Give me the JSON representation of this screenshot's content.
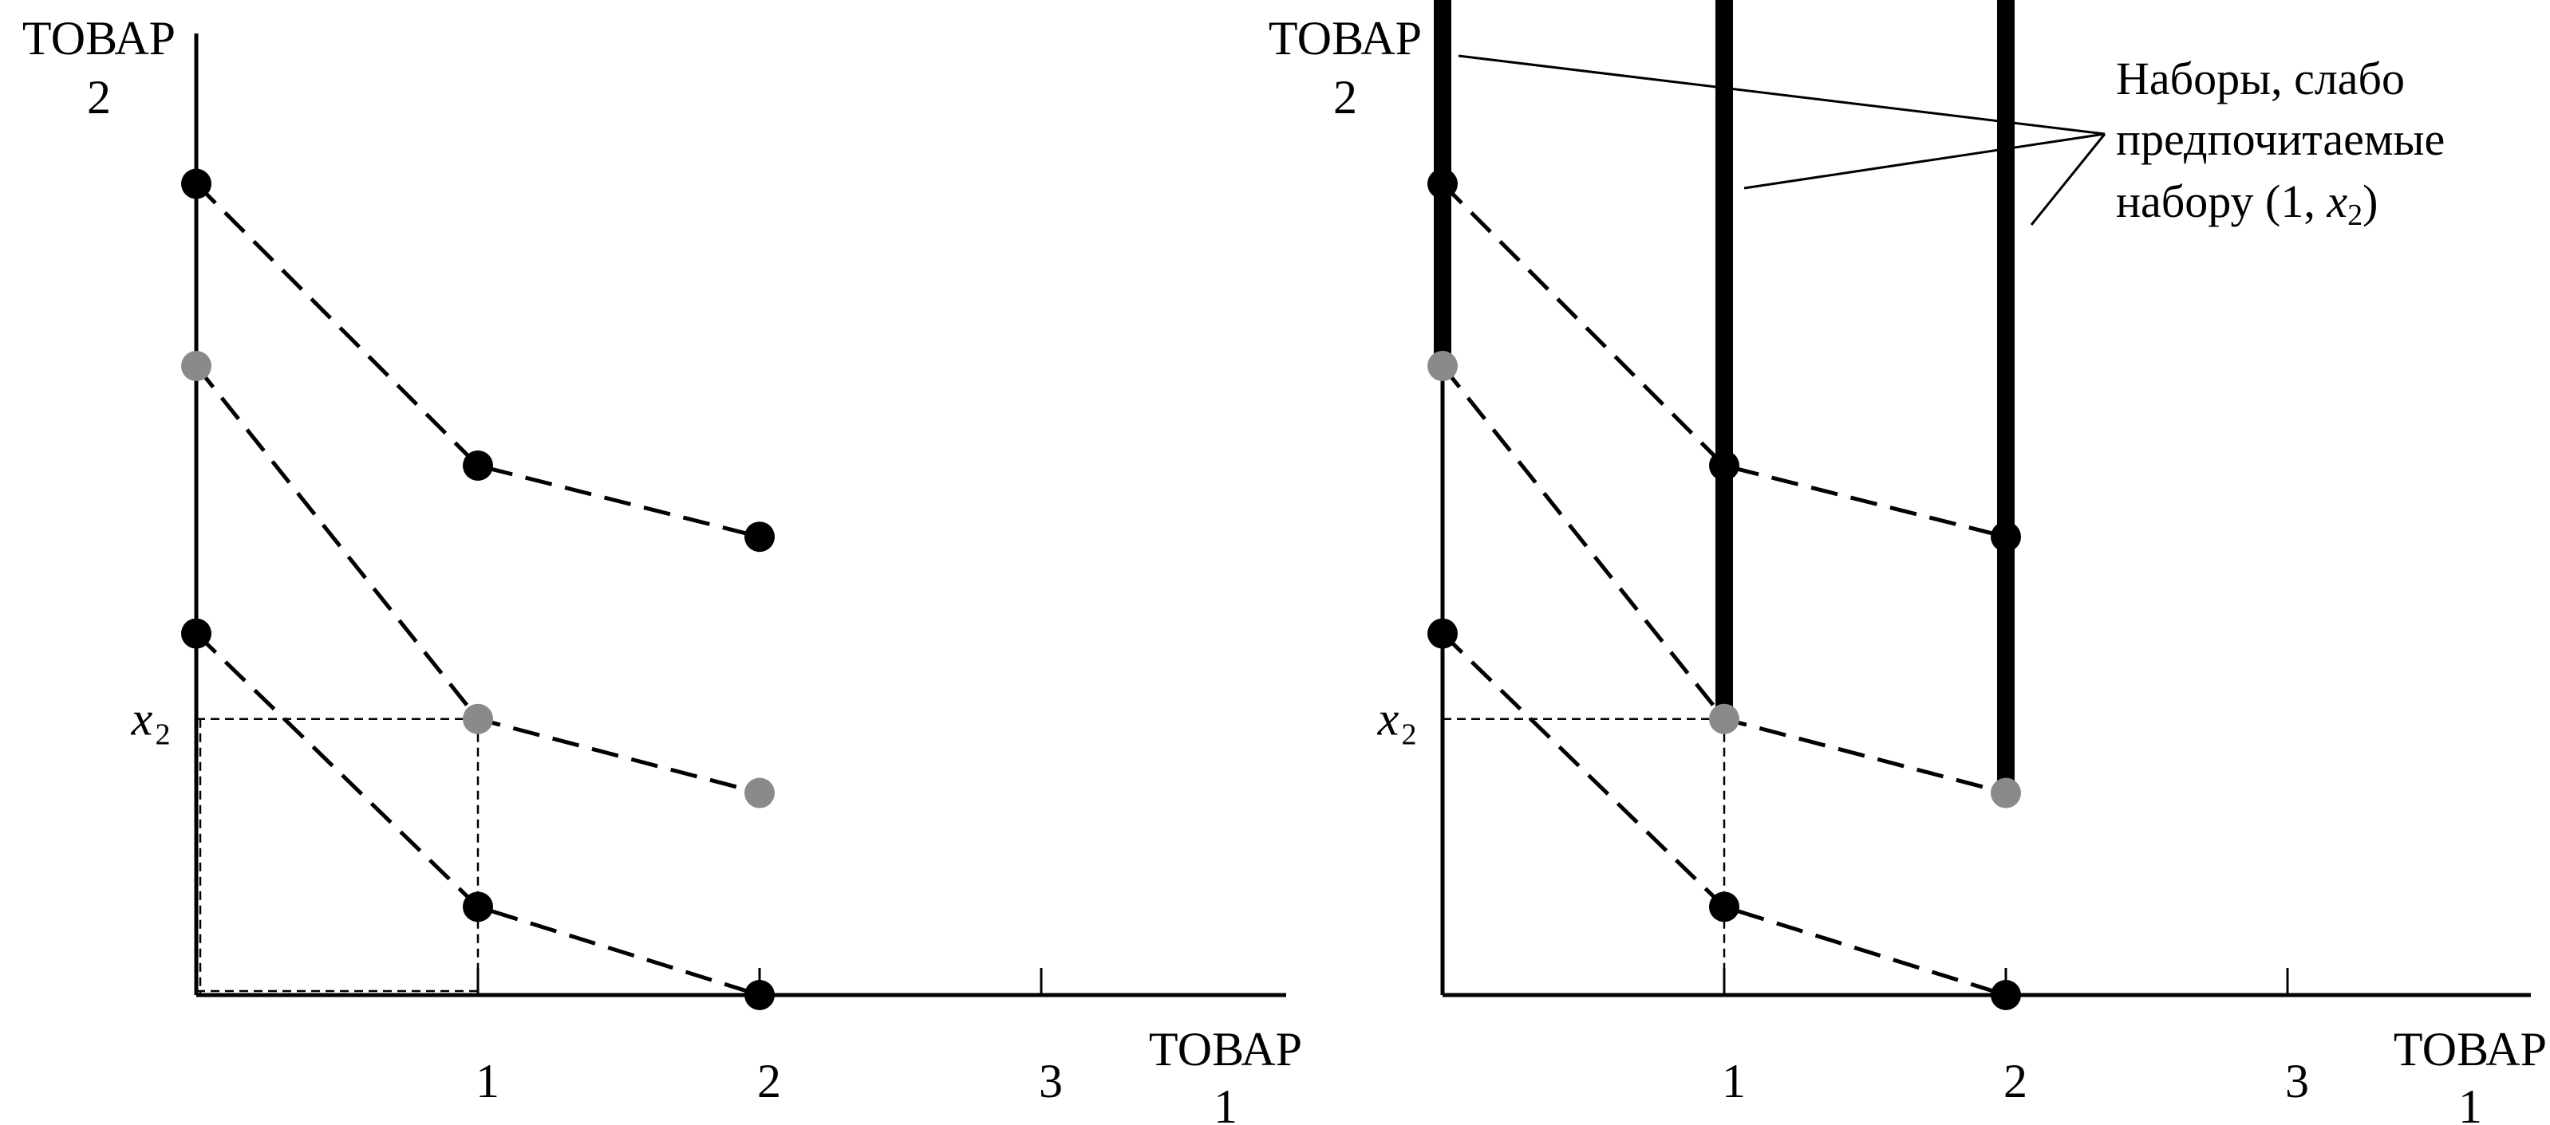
{
  "chart_data": [
    {
      "type": "diagram",
      "y_axis_label": [
        "ТОВАР",
        "2"
      ],
      "x_axis_label": [
        "ТОВАР",
        "1"
      ],
      "x_ticks": [
        "1",
        "2",
        "3"
      ],
      "x2_label": "x",
      "x2_subscript": "2",
      "colors": {
        "axis": "#000000",
        "black_point": "#000000",
        "gray_point": "#8a8a8a"
      },
      "curves": [
        {
          "color": "black",
          "points": [
            [
              0,
              2.85
            ],
            [
              1,
              1.86
            ],
            [
              2,
              1.61
            ]
          ]
        },
        {
          "color": "gray",
          "points": [
            [
              0,
              2.21
            ],
            [
              1,
              0.97
            ],
            [
              2,
              0.71
            ]
          ]
        },
        {
          "color": "black",
          "points": [
            [
              0,
              1.27
            ],
            [
              1,
              0.31
            ],
            [
              2,
              0.0
            ]
          ]
        }
      ],
      "reference_point": {
        "x": 1,
        "y": 0.97
      }
    },
    {
      "type": "diagram",
      "y_axis_label": [
        "ТОВАР",
        "2"
      ],
      "x_axis_label": [
        "ТОВАР",
        "1"
      ],
      "x_ticks": [
        "1",
        "2",
        "3"
      ],
      "x2_label": "x",
      "x2_subscript": "2",
      "colors": {
        "axis": "#000000",
        "black_point": "#000000",
        "gray_point": "#8a8a8a"
      },
      "curves": [
        {
          "color": "black",
          "points": [
            [
              0,
              2.85
            ],
            [
              1,
              1.86
            ],
            [
              2,
              1.61
            ]
          ]
        },
        {
          "color": "gray",
          "points": [
            [
              0,
              2.21
            ],
            [
              1,
              0.97
            ],
            [
              2,
              0.71
            ]
          ]
        },
        {
          "color": "black",
          "points": [
            [
              0,
              1.27
            ],
            [
              1,
              0.31
            ],
            [
              2,
              0.0
            ]
          ]
        }
      ],
      "reference_point": {
        "x": 1,
        "y": 0.97
      },
      "weakly_preferred_rays": [
        {
          "x": 0,
          "from_y": 2.21
        },
        {
          "x": 1,
          "from_y": 0.97
        },
        {
          "x": 2,
          "from_y": 0.71
        }
      ],
      "annotation": {
        "lines": [
          "Наборы, слабо",
          "предпочитаемые"
        ],
        "last_line_prefix": "набору (1, ",
        "last_line_var": "x",
        "last_line_sub": "2",
        "last_line_suffix": ")"
      }
    }
  ]
}
